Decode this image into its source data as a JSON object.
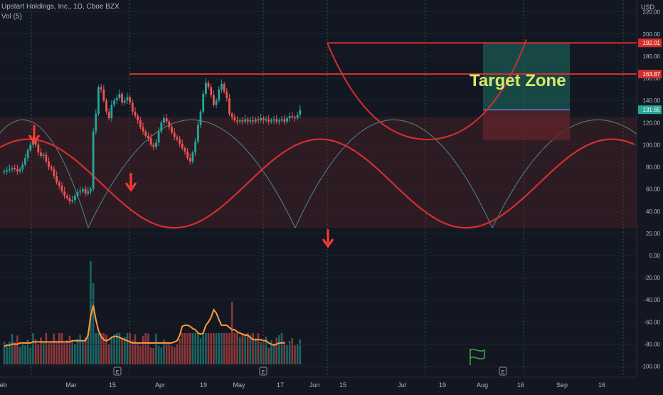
{
  "header": {
    "title_line": "Upstart Holdings, Inc., 1D, Cboe BZX",
    "volume_line": "Vol (5)",
    "currency": "USD"
  },
  "colors": {
    "background": "#131722",
    "up_candle": "#26a69a",
    "down_candle": "#ef5350",
    "drawing": "#d32f2f",
    "cycle_arc": "#4c8c86",
    "target_text": "#d8e86a",
    "target_zone": "#1b5e55",
    "stop_zone": "#5e2329",
    "vol_ma": "#ff9a3c"
  },
  "chart_data": {
    "type": "candlestick",
    "symbol": "Upstart Holdings, Inc.",
    "interval": "1D",
    "exchange": "Cboe BZX",
    "price_axis": {
      "ticks": [
        "220.00",
        "200.00",
        "180.00",
        "160.00",
        "140.00",
        "120.00",
        "100.00",
        "80.00",
        "60.00",
        "40.00",
        "20.00",
        "0.00",
        "-20.00",
        "-40.00",
        "-60.00",
        "-80.00",
        "-100.00"
      ],
      "range": [
        -100,
        240
      ]
    },
    "time_axis": [
      "Feb",
      "Mar",
      "15",
      "Apr",
      "19",
      "May",
      "17",
      "Jun",
      "15",
      "Jul",
      "19",
      "Aug",
      "16",
      "Sep",
      "16"
    ],
    "price_labels": [
      {
        "value": 192.01,
        "text": "192.01",
        "kind": "resistance"
      },
      {
        "value": 163.87,
        "text": "163.87",
        "kind": "resistance"
      },
      {
        "value": 131.65,
        "text": "131.65",
        "kind": "last"
      }
    ],
    "annotations": [
      {
        "text": "Target Zone"
      }
    ],
    "event_markers": [
      "E",
      "E",
      "E"
    ],
    "closes": [
      76,
      77,
      78,
      79,
      78,
      76,
      78,
      82,
      88,
      95,
      100,
      104,
      100,
      93,
      90,
      91,
      85,
      80,
      78,
      72,
      66,
      63,
      58,
      54,
      52,
      49,
      50,
      54,
      57,
      58,
      60,
      56,
      58,
      60,
      112,
      128,
      152,
      150,
      140,
      130,
      124,
      136,
      140,
      142,
      146,
      138,
      140,
      143,
      138,
      130,
      126,
      122,
      116,
      112,
      108,
      106,
      100,
      98,
      102,
      112,
      120,
      124,
      121,
      116,
      111,
      107,
      105,
      101,
      97,
      94,
      88,
      85,
      93,
      103,
      118,
      130,
      146,
      156,
      152,
      145,
      136,
      140,
      150,
      155,
      148,
      142,
      128,
      125,
      122,
      121,
      122,
      121,
      123,
      121,
      122,
      121,
      123,
      122,
      124,
      122,
      123,
      121,
      122,
      123,
      121,
      122,
      123,
      121,
      124,
      126,
      125,
      124,
      127,
      131.65
    ],
    "volume_ma": [
      -82,
      -81,
      -81,
      -80,
      -80,
      -80,
      -79,
      -79,
      -79,
      -79,
      -79,
      -78,
      -78,
      -78,
      -78,
      -78,
      -78,
      -78,
      -78,
      -78,
      -78,
      -78,
      -78,
      -78,
      -78,
      -78,
      -77,
      -77,
      -77,
      -77,
      -77,
      -77,
      -72,
      -55,
      -45,
      -58,
      -68,
      -73,
      -76,
      -77,
      -76,
      -74,
      -73,
      -73,
      -74,
      -75,
      -76,
      -77,
      -78,
      -79,
      -79,
      -79,
      -79,
      -79,
      -79,
      -79,
      -79,
      -79,
      -79,
      -79,
      -79,
      -79,
      -79,
      -79,
      -79,
      -78,
      -77,
      -72,
      -64,
      -63,
      -63,
      -64,
      -66,
      -67,
      -70,
      -71,
      -70,
      -63,
      -60,
      -56,
      -49,
      -52,
      -58,
      -63,
      -63,
      -63,
      -65,
      -67,
      -67,
      -69,
      -70,
      -71,
      -72,
      -72,
      -74,
      -76,
      -76,
      -76,
      -76,
      -77,
      -77,
      -79,
      -80,
      -81,
      -80,
      -79,
      -79,
      -79
    ]
  }
}
